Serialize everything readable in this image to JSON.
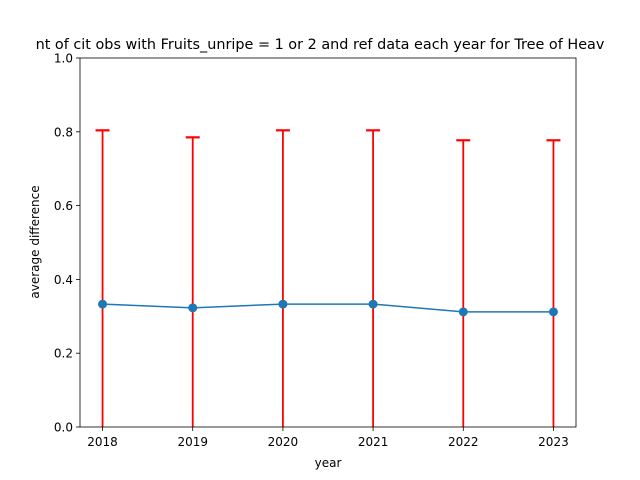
{
  "chart_data": {
    "type": "line",
    "title": "nt of cit obs with Fruits_unripe = 1 or 2 and ref data each year for Tree of Heav",
    "xlabel": "year",
    "ylabel": "average difference",
    "categories": [
      "2018",
      "2019",
      "2020",
      "2021",
      "2022",
      "2023"
    ],
    "x": [
      2018,
      2019,
      2020,
      2021,
      2022,
      2023
    ],
    "values": [
      0.333,
      0.323,
      0.333,
      0.333,
      0.312,
      0.312
    ],
    "error_upper": [
      0.804,
      0.785,
      0.804,
      0.804,
      0.777,
      0.777
    ],
    "error_lower": [
      0,
      0,
      0,
      0,
      0,
      0
    ],
    "ylim": [
      0,
      1.0
    ],
    "yticks": [
      0.0,
      0.2,
      0.4,
      0.6,
      0.8,
      1.0
    ],
    "ytick_labels": [
      "0.0",
      "0.2",
      "0.4",
      "0.6",
      "0.8",
      "1.0"
    ],
    "grid": false,
    "colors": {
      "line": "#1f77b4",
      "errorbar": "#ff0000"
    }
  }
}
